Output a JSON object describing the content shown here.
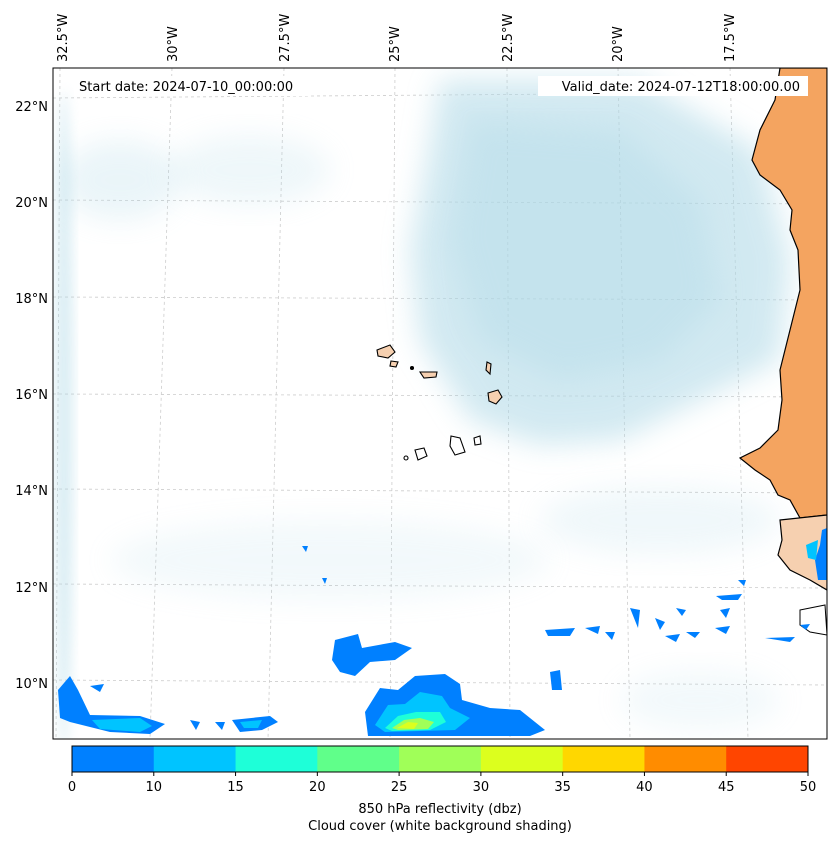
{
  "map": {
    "start_date": "Start date: 2024-07-10_00:00:00",
    "valid_date": "Valid_date: 2024-07-12T18:00:00.00",
    "lon_labels": [
      "32.5°W",
      "30°W",
      "27.5°W",
      "25°W",
      "22.5°W",
      "20°W",
      "17.5°W"
    ],
    "lat_labels": [
      "22°N",
      "20°N",
      "18°N",
      "16°N",
      "14°N",
      "12°N",
      "10°N"
    ],
    "ocean_color": "#ffffff",
    "land_color": "#f4a460",
    "coast_color": "#000000",
    "cloud_color": "#add8e6"
  },
  "colorbar": {
    "ticks": [
      "0",
      "10",
      "15",
      "20",
      "25",
      "30",
      "35",
      "40",
      "45",
      "50"
    ],
    "colors": [
      "#0080ff",
      "#00c4ff",
      "#1effd8",
      "#60ff8a",
      "#a0ff58",
      "#dcff1e",
      "#ffd700",
      "#ff8c00",
      "#ff4500"
    ],
    "label_line1": "850 hPa reflectivity (dbz)",
    "label_line2": "Cloud cover (white background shading)"
  }
}
